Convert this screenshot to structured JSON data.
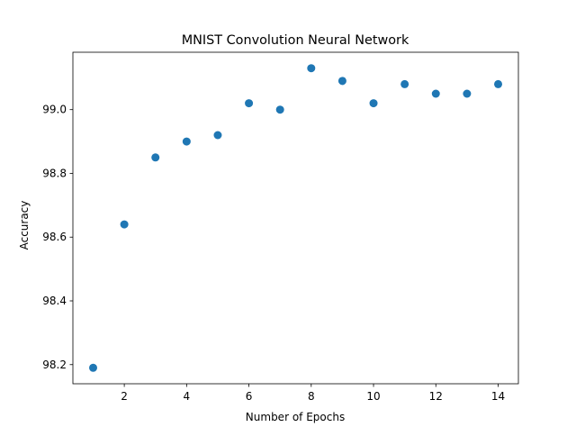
{
  "chart_data": {
    "type": "scatter",
    "title": "MNIST Convolution Neural Network",
    "xlabel": "Number of Epochs",
    "ylabel": "Accuracy",
    "x": [
      1,
      2,
      3,
      4,
      5,
      6,
      7,
      8,
      9,
      10,
      11,
      12,
      13,
      14
    ],
    "y": [
      98.19,
      98.64,
      98.85,
      98.9,
      98.92,
      99.02,
      99.0,
      99.13,
      99.09,
      99.02,
      99.08,
      99.05,
      99.05,
      99.08
    ],
    "xlim": [
      0.35,
      14.65
    ],
    "ylim": [
      98.14,
      99.18
    ],
    "xticks": [
      2,
      4,
      6,
      8,
      10,
      12,
      14
    ],
    "xtick_labels": [
      "2",
      "4",
      "6",
      "8",
      "10",
      "12",
      "14"
    ],
    "yticks": [
      98.2,
      98.4,
      98.6,
      98.8,
      99.0
    ],
    "ytick_labels": [
      "98.2",
      "98.4",
      "98.6",
      "98.8",
      "99.0"
    ],
    "grid": false,
    "marker_color": "#1f77b4"
  }
}
